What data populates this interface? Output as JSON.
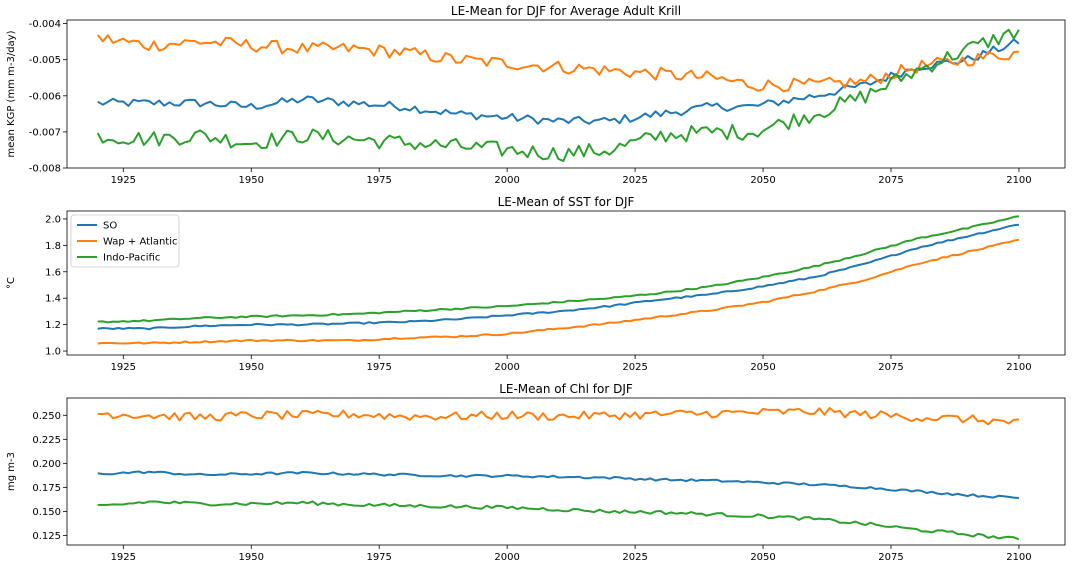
{
  "colors": {
    "SO": "#1f77b4",
    "Wap + Atlantic": "#ff7f0e",
    "Indo-Pacific": "#2ca02c"
  },
  "chart_data": [
    {
      "type": "line",
      "title": "LE-Mean for DJF for Average Adult Krill",
      "xlabel": "",
      "ylabel": "mean KGP (mm m-3/day)",
      "xlim": [
        1914,
        2109
      ],
      "ylim": [
        -0.008,
        -0.0039
      ],
      "x_ticks": [
        1925,
        1950,
        1975,
        2000,
        2025,
        2050,
        2075,
        2100
      ],
      "x_tick_labels": [
        "1925",
        "1950",
        "1975",
        "2000",
        "2025",
        "2050",
        "2075",
        "2100"
      ],
      "y_ticks": [
        -0.008,
        -0.007,
        -0.006,
        -0.005,
        -0.004
      ],
      "y_tick_labels": [
        "-0.008",
        "-0.007",
        "-0.006",
        "-0.005",
        "-0.004"
      ],
      "legend": null,
      "series": [
        {
          "key": "SO",
          "x": [
            1920,
            1930,
            1940,
            1950,
            1960,
            1970,
            1980,
            1990,
            2000,
            2010,
            2020,
            2030,
            2040,
            2048,
            2060,
            2070,
            2080,
            2090,
            2100
          ],
          "y": [
            -0.0062,
            -0.0062,
            -0.0062,
            -0.0063,
            -0.0061,
            -0.0062,
            -0.0063,
            -0.0065,
            -0.0066,
            -0.0067,
            -0.0067,
            -0.0065,
            -0.0063,
            -0.0063,
            -0.006,
            -0.0057,
            -0.0052,
            -0.005,
            -0.0045
          ]
        },
        {
          "key": "Wap + Atlantic",
          "x": [
            1920,
            1930,
            1940,
            1950,
            1960,
            1970,
            1980,
            1990,
            2000,
            2010,
            2020,
            2030,
            2040,
            2048,
            2060,
            2070,
            2080,
            2090,
            2100
          ],
          "y": [
            -0.0044,
            -0.0046,
            -0.0045,
            -0.0046,
            -0.0047,
            -0.0047,
            -0.0048,
            -0.005,
            -0.0051,
            -0.0052,
            -0.0053,
            -0.0054,
            -0.0055,
            -0.0057,
            -0.0057,
            -0.0056,
            -0.0052,
            -0.005,
            -0.0048
          ]
        },
        {
          "key": "Indo-Pacific",
          "x": [
            1920,
            1930,
            1940,
            1950,
            1960,
            1970,
            1980,
            1990,
            2000,
            2010,
            2020,
            2030,
            2040,
            2048,
            2060,
            2070,
            2080,
            2090,
            2100
          ],
          "y": [
            -0.0071,
            -0.0072,
            -0.0071,
            -0.0073,
            -0.0071,
            -0.0072,
            -0.0073,
            -0.0074,
            -0.0075,
            -0.0076,
            -0.0075,
            -0.0071,
            -0.007,
            -0.007,
            -0.0065,
            -0.006,
            -0.0053,
            -0.0047,
            -0.0042
          ]
        }
      ]
    },
    {
      "type": "line",
      "title": "LE-Mean of SST for DJF",
      "xlabel": "",
      "ylabel": "°C",
      "xlim": [
        1914,
        2109
      ],
      "ylim": [
        0.97,
        2.06
      ],
      "x_ticks": [
        1925,
        1950,
        1975,
        2000,
        2025,
        2050,
        2075,
        2100
      ],
      "x_tick_labels": [
        "1925",
        "1950",
        "1975",
        "2000",
        "2025",
        "2050",
        "2075",
        "2100"
      ],
      "y_ticks": [
        1.0,
        1.2,
        1.4,
        1.6,
        1.8,
        2.0
      ],
      "y_tick_labels": [
        "1.0",
        "1.2",
        "1.4",
        "1.6",
        "1.8",
        "2.0"
      ],
      "legend": "top-left",
      "series": [
        {
          "key": "SO",
          "name": "SO",
          "x": [
            1920,
            1930,
            1940,
            1950,
            1960,
            1970,
            1980,
            1990,
            2000,
            2010,
            2020,
            2030,
            2040,
            2050,
            2060,
            2070,
            2080,
            2090,
            2100
          ],
          "y": [
            1.17,
            1.17,
            1.19,
            1.2,
            1.2,
            1.21,
            1.22,
            1.24,
            1.27,
            1.3,
            1.34,
            1.39,
            1.43,
            1.49,
            1.56,
            1.66,
            1.78,
            1.87,
            1.96
          ]
        },
        {
          "key": "Wap + Atlantic",
          "name": "Wap + Atlantic",
          "x": [
            1920,
            1930,
            1940,
            1950,
            1960,
            1970,
            1980,
            1990,
            2000,
            2010,
            2020,
            2030,
            2040,
            2050,
            2060,
            2070,
            2080,
            2090,
            2100
          ],
          "y": [
            1.06,
            1.06,
            1.07,
            1.08,
            1.08,
            1.08,
            1.1,
            1.11,
            1.13,
            1.17,
            1.21,
            1.26,
            1.31,
            1.37,
            1.45,
            1.54,
            1.66,
            1.75,
            1.84
          ]
        },
        {
          "key": "Indo-Pacific",
          "name": "Indo-Pacific",
          "x": [
            1920,
            1930,
            1940,
            1950,
            1960,
            1970,
            1980,
            1990,
            2000,
            2010,
            2020,
            2030,
            2040,
            2050,
            2060,
            2070,
            2080,
            2090,
            2100
          ],
          "y": [
            1.22,
            1.23,
            1.25,
            1.26,
            1.27,
            1.28,
            1.3,
            1.32,
            1.34,
            1.37,
            1.4,
            1.44,
            1.49,
            1.56,
            1.64,
            1.74,
            1.85,
            1.93,
            2.02
          ]
        }
      ]
    },
    {
      "type": "line",
      "title": "LE-Mean of Chl for DJF",
      "xlabel": "",
      "ylabel": "mg m-3",
      "xlim": [
        1914,
        2109
      ],
      "ylim": [
        0.115,
        0.268
      ],
      "x_ticks": [
        1925,
        1950,
        1975,
        2000,
        2025,
        2050,
        2075,
        2100
      ],
      "x_tick_labels": [
        "1925",
        "1950",
        "1975",
        "2000",
        "2025",
        "2050",
        "2075",
        "2100"
      ],
      "y_ticks": [
        0.125,
        0.15,
        0.175,
        0.2,
        0.225,
        0.25
      ],
      "y_tick_labels": [
        "0.125",
        "0.150",
        "0.175",
        "0.200",
        "0.225",
        "0.250"
      ],
      "legend": null,
      "series": [
        {
          "key": "SO",
          "x": [
            1920,
            1930,
            1940,
            1950,
            1960,
            1970,
            1980,
            1990,
            2000,
            2010,
            2020,
            2030,
            2040,
            2050,
            2060,
            2070,
            2080,
            2090,
            2100
          ],
          "y": [
            0.189,
            0.191,
            0.188,
            0.189,
            0.19,
            0.189,
            0.188,
            0.187,
            0.187,
            0.186,
            0.185,
            0.183,
            0.182,
            0.18,
            0.178,
            0.175,
            0.171,
            0.167,
            0.164
          ]
        },
        {
          "key": "Wap + Atlantic",
          "x": [
            1920,
            1930,
            1940,
            1950,
            1960,
            1970,
            1980,
            1990,
            2000,
            2010,
            2020,
            2030,
            2040,
            2050,
            2060,
            2070,
            2080,
            2090,
            2100
          ],
          "y": [
            0.252,
            0.25,
            0.248,
            0.25,
            0.25,
            0.251,
            0.249,
            0.249,
            0.25,
            0.249,
            0.25,
            0.251,
            0.252,
            0.253,
            0.254,
            0.251,
            0.248,
            0.246,
            0.242
          ]
        },
        {
          "key": "Indo-Pacific",
          "x": [
            1920,
            1930,
            1940,
            1950,
            1960,
            1970,
            1980,
            1990,
            2000,
            2010,
            2020,
            2030,
            2040,
            2050,
            2060,
            2070,
            2080,
            2090,
            2100
          ],
          "y": [
            0.155,
            0.16,
            0.158,
            0.158,
            0.159,
            0.157,
            0.156,
            0.155,
            0.154,
            0.152,
            0.15,
            0.149,
            0.147,
            0.145,
            0.142,
            0.137,
            0.131,
            0.126,
            0.121
          ]
        }
      ]
    }
  ]
}
